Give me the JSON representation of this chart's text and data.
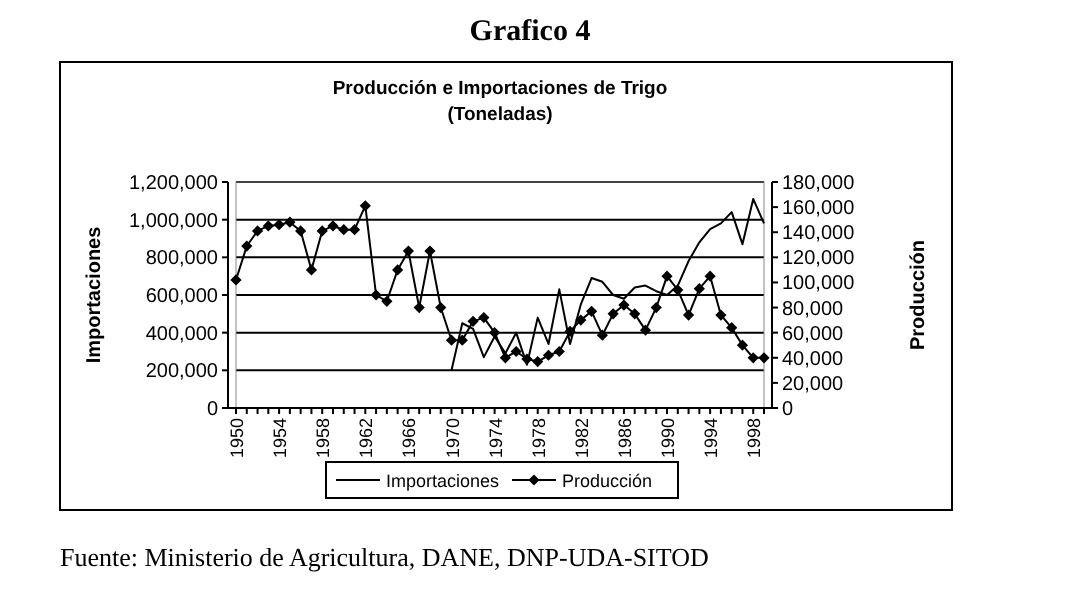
{
  "chart_data": {
    "type": "line",
    "title": "Producción e Importaciones de Trigo",
    "subtitle": "(Toneladas)",
    "ylabel": "Importaciones",
    "y2label": "Producción",
    "annotations": [
      "Grafico 4",
      "Fuente: Ministerio de Agricultura, DANE, DNP-UDA-SITOD"
    ],
    "categories": [
      "1950",
      null,
      null,
      null,
      "1954",
      null,
      null,
      null,
      "1958",
      null,
      null,
      null,
      "1962",
      null,
      null,
      null,
      "1966",
      null,
      null,
      null,
      "1970",
      null,
      null,
      null,
      "1974",
      null,
      null,
      null,
      "1978",
      null,
      null,
      null,
      "1982",
      null,
      null,
      null,
      "1986",
      null,
      null,
      null,
      "1990",
      null,
      null,
      null,
      "1994",
      null,
      null,
      null,
      "1998",
      null
    ],
    "series": [
      {
        "name": "Importaciones",
        "color": "#000000",
        "marker": "none",
        "axis": "y",
        "values": [
          null,
          null,
          null,
          null,
          null,
          null,
          null,
          null,
          null,
          null,
          null,
          null,
          null,
          null,
          null,
          null,
          null,
          null,
          null,
          null,
          200000,
          450000,
          420000,
          270000,
          380000,
          290000,
          400000,
          230000,
          480000,
          340000,
          630000,
          340000,
          550000,
          690000,
          670000,
          600000,
          580000,
          640000,
          650000,
          620000,
          600000,
          650000,
          780000,
          880000,
          950000,
          980000,
          1040000,
          870000,
          1110000,
          980000
        ]
      },
      {
        "name": "Producción",
        "color": "#000000",
        "marker": "diamond",
        "axis": "y2",
        "values": [
          102000,
          129000,
          141000,
          145000,
          146000,
          148000,
          141000,
          110000,
          141000,
          145000,
          142000,
          142000,
          161000,
          90000,
          85000,
          110000,
          125000,
          80000,
          125000,
          80000,
          54000,
          54000,
          69000,
          72000,
          60000,
          40000,
          45000,
          39000,
          37000,
          42000,
          45000,
          61000,
          70000,
          77000,
          58000,
          75000,
          82000,
          75000,
          62000,
          80000,
          105000,
          94000,
          74000,
          95000,
          105000,
          74000,
          64000,
          50000,
          40000,
          40000
        ]
      }
    ],
    "ylim": [
      0,
      1200000
    ],
    "yticks": [
      {
        "value": 0,
        "label": "0"
      },
      {
        "value": 200000,
        "label": "200,000"
      },
      {
        "value": 400000,
        "label": "400,000"
      },
      {
        "value": 600000,
        "label": "600,000"
      },
      {
        "value": 800000,
        "label": "800,000"
      },
      {
        "value": 1000000,
        "label": "1,000,000"
      },
      {
        "value": 1200000,
        "label": "1,200,000"
      }
    ],
    "y2lim": [
      0,
      180000
    ],
    "y2ticks": [
      {
        "value": 0,
        "label": "0"
      },
      {
        "value": 20000,
        "label": "20,000"
      },
      {
        "value": 40000,
        "label": "40,000"
      },
      {
        "value": 60000,
        "label": "60,000"
      },
      {
        "value": 80000,
        "label": "80,000"
      },
      {
        "value": 100000,
        "label": "100,000"
      },
      {
        "value": 120000,
        "label": "120,000"
      },
      {
        "value": 140000,
        "label": "140,000"
      },
      {
        "value": 160000,
        "label": "160,000"
      },
      {
        "value": 180000,
        "label": "180,000"
      }
    ],
    "grid": "y",
    "legend": "bottom",
    "line_style": "solid"
  }
}
